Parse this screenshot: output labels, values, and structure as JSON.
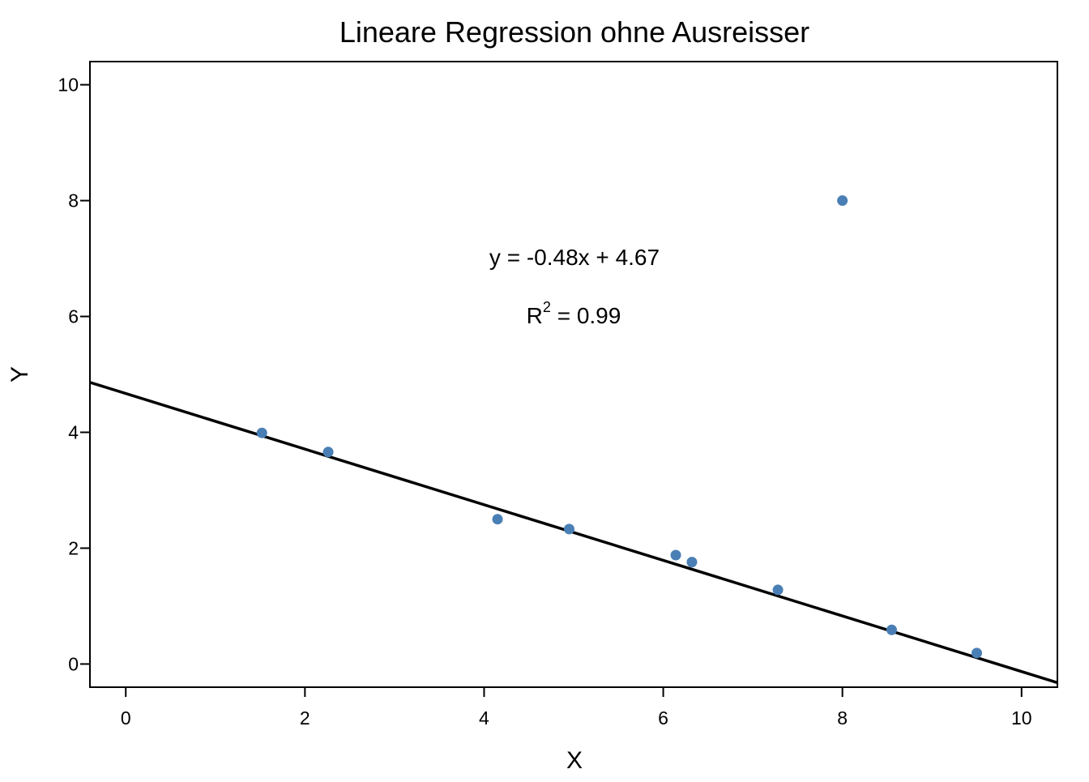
{
  "chart_data": {
    "type": "scatter",
    "title": "Lineare Regression ohne Ausreisser",
    "xlabel": "X",
    "ylabel": "Y",
    "xlim": [
      -0.4,
      10.4
    ],
    "ylim": [
      -0.4,
      10.4
    ],
    "xticks": [
      0,
      2,
      4,
      6,
      8,
      10
    ],
    "yticks": [
      0,
      2,
      4,
      6,
      8,
      10
    ],
    "grid": false,
    "point_color": "#4a7fb5",
    "line_color": "#000000",
    "points": [
      {
        "x": 1.52,
        "y": 3.99
      },
      {
        "x": 2.26,
        "y": 3.66
      },
      {
        "x": 4.15,
        "y": 2.5
      },
      {
        "x": 4.95,
        "y": 2.33
      },
      {
        "x": 6.14,
        "y": 1.88
      },
      {
        "x": 6.32,
        "y": 1.76
      },
      {
        "x": 7.28,
        "y": 1.28
      },
      {
        "x": 8.0,
        "y": 8.0
      },
      {
        "x": 8.55,
        "y": 0.59
      },
      {
        "x": 9.5,
        "y": 0.19
      }
    ],
    "regression": {
      "slope": -0.48,
      "intercept": 4.67
    },
    "annotations": {
      "equation": "y = -0.48x + 4.67",
      "r2_prefix": "R",
      "r2_sup": "2",
      "r2_value": " = 0.99"
    }
  }
}
